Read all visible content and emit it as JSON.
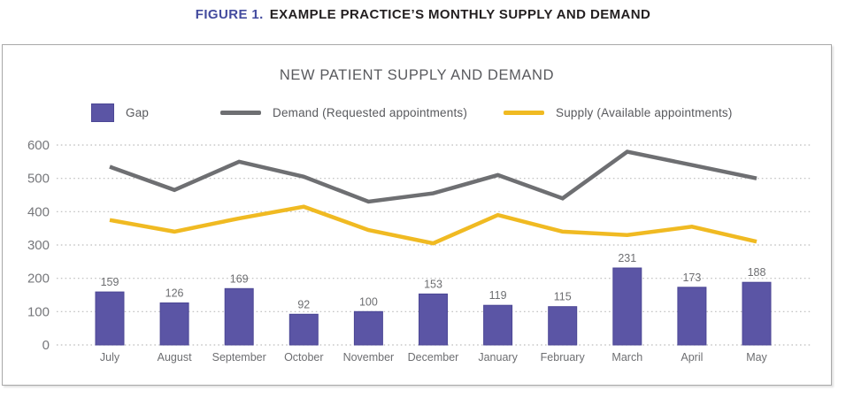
{
  "figure_title": {
    "label": "FIGURE 1.",
    "text": "EXAMPLE PRACTICE’S MONTHLY SUPPLY AND DEMAND"
  },
  "colors": {
    "figure_label_accent": "#434b9e",
    "figure_title_text": "#231f20",
    "chart_title_text": "#58595d",
    "bar_fill": "#5b55a5",
    "bar_edge": "#4c4795",
    "demand_line": "#6e6f72",
    "supply_line": "#f0ba22",
    "axis_text": "#76777b",
    "label_text": "#6d6e71",
    "gridline": "#bdbdbd",
    "panel_border": "#a8a8a8"
  },
  "chart_data": {
    "type": "bar",
    "subtype": "combo-bar-line",
    "title": "NEW PATIENT SUPPLY AND DEMAND",
    "categories": [
      "July",
      "August",
      "September",
      "October",
      "November",
      "December",
      "January",
      "February",
      "March",
      "April",
      "May"
    ],
    "series": [
      {
        "name": "Gap",
        "type": "bar",
        "color": "#5b55a5",
        "values": [
          159,
          126,
          169,
          92,
          100,
          153,
          119,
          115,
          231,
          173,
          188
        ],
        "data_labels": true
      },
      {
        "name": "Demand (Requested appointments)",
        "type": "line",
        "color": "#6e6f72",
        "values": [
          535,
          465,
          550,
          505,
          430,
          455,
          510,
          440,
          580,
          540,
          500
        ]
      },
      {
        "name": "Supply (Available appointments)",
        "type": "line",
        "color": "#f0ba22",
        "values": [
          375,
          340,
          380,
          415,
          345,
          305,
          390,
          340,
          330,
          355,
          310
        ]
      }
    ],
    "y_axis": {
      "min": 0,
      "max": 600,
      "step": 100,
      "ticks": [
        600,
        500,
        400,
        300,
        200,
        100,
        0
      ]
    },
    "x_axis_label": "",
    "y_axis_label": "",
    "grid": "dotted-horizontal",
    "legend_position": "top"
  }
}
